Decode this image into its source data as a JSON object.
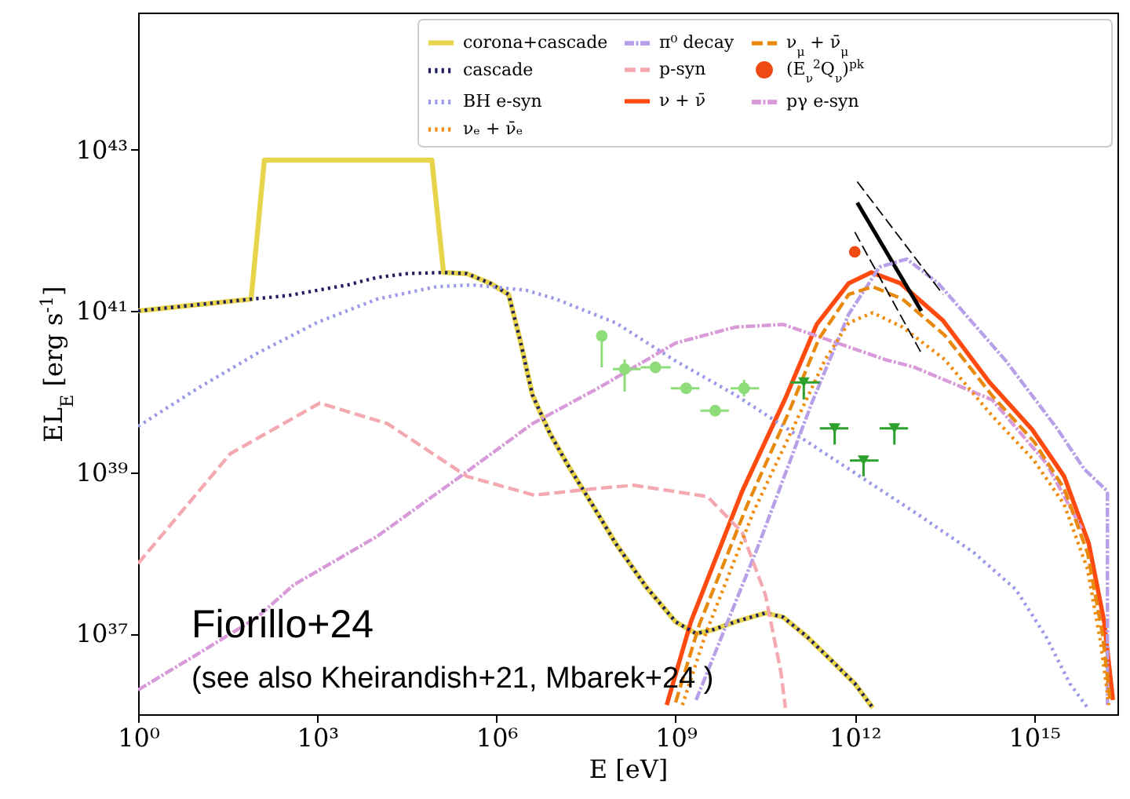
{
  "chart_data": {
    "type": "line",
    "xlabel": "E [eV]",
    "ylabel": "EL$_{E}$ [erg s$^{-1}$]",
    "log": "xy",
    "legend": "top right",
    "xlim": [
      1,
      2.5e+16
    ],
    "ylim": [
      1e+36,
      5e+44
    ],
    "xticks": [
      {
        "value": 1,
        "label": "10⁰"
      },
      {
        "value": 1000.0,
        "label": "10³"
      },
      {
        "value": 1000000.0,
        "label": "10⁶"
      },
      {
        "value": 1000000000.0,
        "label": "10⁹"
      },
      {
        "value": 1000000000000.0,
        "label": "10¹²"
      },
      {
        "value": 1000000000000000.0,
        "label": "10¹⁵"
      }
    ],
    "yticks": [
      {
        "value": 1e+37,
        "label": "10³⁷"
      },
      {
        "value": 1e+39,
        "label": "10³⁹"
      },
      {
        "value": 1e+41,
        "label": "10⁴¹"
      },
      {
        "value": 1e+43,
        "label": "10⁴³"
      }
    ],
    "annotations": [
      "Fiorillo+24",
      "(see also Kheirandish+21, Mbarek+24 )"
    ],
    "series": [
      {
        "name": "corona+cascade",
        "type": "line",
        "line_style": "solid",
        "color": "#e8d44a",
        "x": [
          1,
          78,
          130,
          83000.0,
          130000.0,
          320000.0,
          790000.0,
          1600000.0,
          2500000.0,
          4000000.0,
          7900000.0,
          16000000.0,
          40000000.0,
          100000000.0,
          320000000.0,
          1000000000.0,
          2200000000.0,
          4000000000.0,
          10000000000.0,
          32000000000.0,
          63000000000.0,
          160000000000.0,
          400000000000.0,
          1000000000000.0,
          2000000000000.0
        ],
        "values": [
          1e+41,
          1.4e+41,
          7.4e+42,
          7.4e+42,
          3e+41,
          2.9e+41,
          2.2e+41,
          1.6e+41,
          4.3e+40,
          9.1e+39,
          3e+39,
          1.2e+39,
          4e+38,
          1.3e+38,
          3.8e+37,
          1.4e+37,
          1e+37,
          1.1e+37,
          1.4e+37,
          1.8e+37,
          1.6e+37,
          9.1e+36,
          4.7e+36,
          2.4e+36,
          1.2e+36
        ]
      },
      {
        "name": "cascade",
        "type": "line",
        "line_style": "dotted",
        "color": "#1f1f5e",
        "x": [
          1,
          78,
          320.0,
          1000.0,
          3200.0,
          10000.0,
          32000.0,
          130000.0,
          320000.0,
          790000.0,
          1600000.0,
          2500000.0,
          4000000.0,
          7900000.0,
          16000000.0,
          40000000.0,
          100000000.0,
          320000000.0,
          1000000000.0,
          2200000000.0,
          4000000000.0,
          10000000000.0,
          32000000000.0,
          63000000000.0,
          160000000000.0,
          400000000000.0,
          1000000000000.0,
          2000000000000.0
        ],
        "values": [
          1e+41,
          1.4e+41,
          1.55e+41,
          1.8e+41,
          2.1e+41,
          2.6e+41,
          2.9e+41,
          3e+41,
          2.9e+41,
          2.2e+41,
          1.6e+41,
          4.3e+40,
          9.1e+39,
          3e+39,
          1.2e+39,
          4e+38,
          1.3e+38,
          3.8e+37,
          1.4e+37,
          1e+37,
          1.1e+37,
          1.4e+37,
          1.8e+37,
          1.6e+37,
          9.1e+36,
          4.7e+36,
          2.4e+36,
          1.2e+36
        ]
      },
      {
        "name": "BH e-syn",
        "type": "line",
        "line_style": "dotted",
        "color": "#9a9ae8",
        "x": [
          1,
          10,
          100,
          1000.0,
          10000.0,
          100000.0,
          400000.0,
          3200000.0,
          10000000.0,
          100000000.0,
          1000000000.0,
          10000000000.0,
          100000000000.0,
          1000000000000.0,
          10000000000000.0,
          100000000000000.0,
          500000000000000.0,
          1600000000000000.0,
          4000000000000000.0,
          7900000000000000.0
        ],
        "values": [
          3.7e+39,
          1.1e+40,
          3e+40,
          7.2e+40,
          1.4e+41,
          2e+41,
          2.1e+41,
          1.8e+41,
          1.4e+41,
          7.1e+40,
          2.4e+40,
          9.1e+39,
          3e+39,
          9.8e+38,
          3.2e+38,
          1e+38,
          3.5e+37,
          9.1e+36,
          2.4e+36,
          1.2e+36
        ]
      },
      {
        "name": "pγ e-syn",
        "type": "line",
        "line_style": "dashdot",
        "color": "#d89ad8",
        "x": [
          1,
          10,
          100,
          400.0,
          10000.0,
          250000.0,
          4000000.0,
          50000000.0,
          1000000000.0,
          10000000000.0,
          63000000000.0,
          320000000000.0,
          3200000000000.0,
          10000000000000.0,
          200000000000000.0,
          1600000000000000.0,
          6300000000000000.0
        ],
        "values": [
          2e+36,
          5.6e+36,
          1.6e+37,
          4e+37,
          1.6e+38,
          8.9e+38,
          4e+39,
          1.1e+40,
          4e+40,
          6.3e+40,
          6.8e+40,
          4.5e+40,
          2.5e+40,
          2e+40,
          7.9e+39,
          1.3e+39,
          2e+38
        ]
      },
      {
        "name": "π⁰ decay",
        "type": "line",
        "line_style": "dashdot",
        "color": "#b8a0e8",
        "x": [
          2200000000.0,
          25000000000.0,
          190000000000.0,
          790000000000.0,
          2600000000000.0,
          7400000000000.0,
          25000000000000.0,
          340000000000000.0,
          2500000000000000.0,
          6900000000000000.0,
          1.7e+16,
          1.7e+16
        ],
        "values": [
          1.5e+36,
          1.3e+38,
          7.2e+39,
          9.1e+40,
          3.5e+41,
          4.4e+41,
          2.2e+41,
          2.4e+40,
          3.4e+39,
          1.1e+39,
          5.8e+38,
          1.3e+36
        ]
      },
      {
        "name": "p-syn",
        "type": "line",
        "line_style": "dashed",
        "color": "#f4a8b0",
        "x": [
          1,
          35,
          1100.0,
          15000.0,
          320000.0,
          4300000.0,
          48000000.0,
          200000000.0,
          3400000000.0,
          13000000000.0,
          32000000000.0,
          58000000000.0,
          69000000000.0
        ],
        "values": [
          7.4e+37,
          1.7e+39,
          7.2e+39,
          4e+39,
          8.9e+38,
          5.2e+38,
          6.3e+38,
          6.9e+38,
          5e+38,
          1.8e+38,
          3e+37,
          3.3e+36,
          1.2e+36
        ]
      },
      {
        "name": "ν + ν̄",
        "type": "line",
        "line_style": "solid",
        "color": "#ff4a10",
        "x": [
          710000000.0,
          1800000000.0,
          13000000000.0,
          69000000000.0,
          230000000000.0,
          790000000000.0,
          1900000000000.0,
          5800000000000.0,
          30000000000000.0,
          180000000000000.0,
          930000000000000.0,
          3200000000000000.0,
          8300000000000000.0,
          1.5e+16,
          2.1e+16
        ],
        "values": [
          1.3e+36,
          1.4e+37,
          5.8e+38,
          8.3e+39,
          6.8e+40,
          2.2e+41,
          3e+41,
          2.2e+41,
          7.6e+40,
          1.3e+40,
          3.4e+39,
          8.9e+38,
          1.3e+38,
          1.4e+37,
          1.5e+36
        ]
      },
      {
        "name": "νₑ + ν̄ₑ",
        "type": "line",
        "line_style": "dotted",
        "color": "#f08c10",
        "x": [
          1300000000.0,
          3200000000.0,
          20000000000.0,
          100000000000.0,
          320000000000.0,
          790000000000.0,
          2000000000000.0,
          6300000000000.0,
          32000000000000.0,
          200000000000000.0,
          1000000000000000.0,
          3200000000000000.0,
          7900000000000000.0,
          1.3e+16,
          1.8e+16
        ],
        "values": [
          1.3e+36,
          1e+37,
          3.2e+38,
          4e+39,
          2.5e+40,
          7.1e+40,
          9.5e+40,
          6.3e+40,
          2.5e+40,
          5e+39,
          1.4e+39,
          4e+38,
          6.3e+37,
          7.9e+36,
          1.3e+36
        ]
      },
      {
        "name": "ν$_{μ}$ + ν̄$_{μ}$",
        "type": "line",
        "line_style": "dashed",
        "color": "#e8880c",
        "x": [
          1000000000.0,
          2500000000.0,
          16000000000.0,
          79000000000.0,
          250000000000.0,
          790000000000.0,
          2000000000000.0,
          6300000000000.0,
          32000000000000.0,
          200000000000000.0,
          1000000000000000.0,
          3200000000000000.0,
          7900000000000000.0,
          1.4e+16,
          1.9e+16
        ],
        "values": [
          1.4e+36,
          1.3e+37,
          4e+38,
          5.6e+39,
          4.5e+40,
          1.6e+41,
          2e+41,
          1.4e+41,
          5e+40,
          8.9e+39,
          2.4e+39,
          6.3e+38,
          1e+38,
          1e+37,
          1.4e+36
        ]
      },
      {
        "name": "(E$_{ν}$$^{2}$Q$_{ν}$)$^{pk}$",
        "type": "scatter",
        "marker": "circle",
        "color": "#f04a14",
        "x": [
          1000000000000.0
        ],
        "values": [
          5.4e+41
        ]
      },
      {
        "type": "line",
        "line_style": "solid",
        "color": "#000000",
        "x": [
          1100000000000.0,
          13000000000000.0
        ],
        "values": [
          2.2e+42,
          1e+41
        ]
      },
      {
        "type": "line",
        "line_style": "dashed",
        "color": "#000000",
        "x": [
          1100000000000.0,
          30000000000000.0
        ],
        "values": [
          4e+42,
          1.6e+41
        ]
      },
      {
        "type": "line",
        "line_style": "dashed",
        "color": "#000000",
        "x": [
          1000000000000.0,
          13000000000000.0
        ],
        "values": [
          9.5e+41,
          3e+40
        ]
      },
      {
        "type": "scatter",
        "marker": "circle",
        "color": "#8fdc7a",
        "x": [
          58000000.0,
          140000000.0,
          460000000.0,
          1500000000.0,
          4600000000.0,
          14000000000.0
        ],
        "values": [
          4.9e+40,
          1.9e+40,
          2e+40,
          1.1e+40,
          5.8e+39,
          1.1e+40
        ],
        "errors": [
          [
            2e+40,
            4.9e+40
          ],
          [
            1e+40,
            2.5e+40
          ],
          null,
          null,
          null,
          [
            8.7e+39,
            1.4e+40
          ]
        ],
        "xerrors": [
          null,
          [
            89000000.0,
            260000000.0
          ],
          [
            260000000.0,
            830000000.0
          ],
          [
            830000000.0,
            2500000000.0
          ],
          [
            2600000000.0,
            7800000000.0
          ],
          [
            8300000000.0,
            25000000000.0
          ]
        ]
      },
      {
        "type": "scatter",
        "marker": "triangle",
        "color": "#2ca02c",
        "x": [
          140000000000.0,
          460000000000.0,
          1400000000000.0,
          4600000000000.0
        ],
        "values": [
          1.3e+40,
          3.5e+39,
          1.4e+39,
          3.5e+39
        ],
        "errors": [
          [
            8e+39,
            1.3e+40
          ],
          [
            2.2e+39,
            3.5e+39
          ],
          [
            8.9e+38,
            1.4e+39
          ],
          [
            2.2e+39,
            3.5e+39
          ]
        ],
        "xerrors": [
          [
            83000000000.0,
            260000000000.0
          ],
          [
            260000000000.0,
            780000000000.0
          ],
          [
            830000000000.0,
            2500000000000.0
          ],
          [
            2600000000000.0,
            7800000000000.0
          ]
        ]
      }
    ]
  }
}
